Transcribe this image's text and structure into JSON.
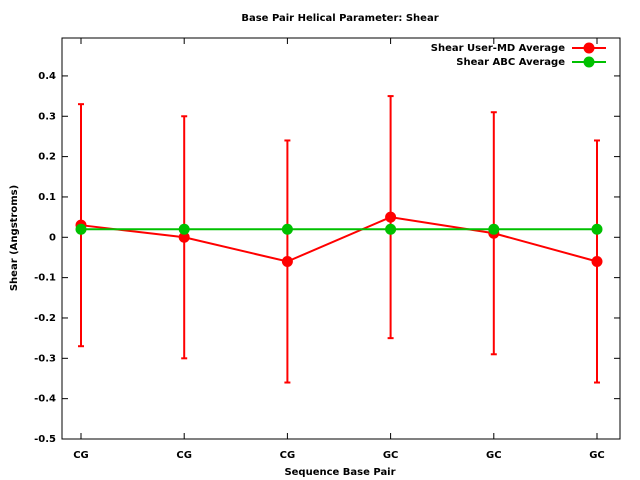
{
  "chart_data": {
    "type": "line",
    "title": "Base Pair Helical Parameter: Shear",
    "x_label": "Sequence Base Pair",
    "y_label": "Shear (Angstroms)",
    "categories": [
      "CG",
      "CG",
      "CG",
      "GC",
      "GC",
      "GC"
    ],
    "series": [
      {
        "name": "Shear User-MD Average",
        "color": "#ff0000",
        "values": [
          0.03,
          0.0,
          -0.06,
          0.05,
          0.01,
          -0.06
        ],
        "errors": [
          0.3,
          0.3,
          0.3,
          0.3,
          0.3,
          0.3
        ]
      },
      {
        "name": "Shear ABC Average",
        "color": "#00c000",
        "values": [
          0.02,
          0.02,
          0.02,
          0.02,
          0.02,
          0.02
        ]
      }
    ],
    "ylim": [
      -0.5,
      0.494
    ],
    "yticks": [
      -0.5,
      -0.4,
      -0.3,
      -0.2,
      -0.1,
      0,
      0.1,
      0.2,
      0.3,
      0.4
    ],
    "legend": "top-right"
  }
}
